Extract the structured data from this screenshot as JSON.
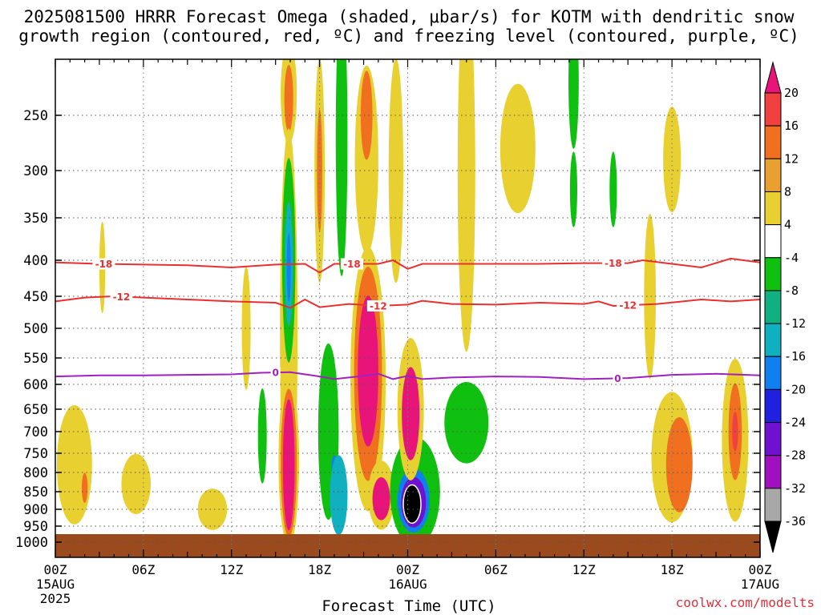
{
  "chart_data": {
    "type": "heatmap",
    "title_line1": "2025081500 HRRR Forecast Omega (shaded, μbar/s) for KOTM with dendritic snow",
    "title_line2": "growth region (contoured, red, ºC) and freezing level (contoured, purple, ºC)",
    "xlabel": "Forecast Time (UTC)",
    "credit": "coolwx.com/modelts",
    "x_ticks": [
      {
        "h": 0,
        "label": "00Z",
        "sub1": "15AUG",
        "sub2": "2025"
      },
      {
        "h": 6,
        "label": "06Z",
        "sub1": "",
        "sub2": ""
      },
      {
        "h": 12,
        "label": "12Z",
        "sub1": "",
        "sub2": ""
      },
      {
        "h": 18,
        "label": "18Z",
        "sub1": "",
        "sub2": ""
      },
      {
        "h": 24,
        "label": "00Z",
        "sub1": "16AUG",
        "sub2": ""
      },
      {
        "h": 30,
        "label": "06Z",
        "sub1": "",
        "sub2": ""
      },
      {
        "h": 36,
        "label": "12Z",
        "sub1": "",
        "sub2": ""
      },
      {
        "h": 42,
        "label": "18Z",
        "sub1": "",
        "sub2": ""
      },
      {
        "h": 48,
        "label": "00Z",
        "sub1": "17AUG",
        "sub2": ""
      }
    ],
    "xlim": [
      0,
      48
    ],
    "y_ticks": [
      250,
      300,
      350,
      400,
      450,
      500,
      550,
      600,
      650,
      700,
      750,
      800,
      850,
      900,
      950,
      1000
    ],
    "ylim": [
      200,
      1020
    ],
    "surface_pressure": 975,
    "colorbar": {
      "labels": [
        "20",
        "16",
        "12",
        "8",
        "4",
        "-4",
        "-8",
        "-12",
        "-16",
        "-20",
        "-24",
        "-28",
        "-32",
        "-36"
      ],
      "colors": [
        "#e8147a",
        "#f04040",
        "#f07020",
        "#e8a030",
        "#e8d030",
        "#ffffff",
        "#10c010",
        "#10b080",
        "#10b0c0",
        "#1080f0",
        "#2020e0",
        "#7010d0",
        "#a010c0",
        "#a8a8a8",
        "#000000"
      ]
    },
    "omega_features": [
      {
        "h": 15.9,
        "p": 230,
        "rh": 0.55,
        "rp": 45,
        "level": "yellow"
      },
      {
        "h": 15.9,
        "p": 235,
        "rh": 0.3,
        "rp": 30,
        "level": "orange"
      },
      {
        "h": 15.9,
        "p": 505,
        "rh": 0.6,
        "rp": 320,
        "level": "yellow"
      },
      {
        "h": 15.9,
        "p": 400,
        "rh": 0.45,
        "rp": 130,
        "level": "green"
      },
      {
        "h": 15.9,
        "p": 405,
        "rh": 0.28,
        "rp": 80,
        "level": "teal"
      },
      {
        "h": 15.9,
        "p": 410,
        "rh": 0.14,
        "rp": 45,
        "level": "blue"
      },
      {
        "h": 15.9,
        "p": 770,
        "rh": 0.7,
        "rp": 210,
        "level": "yellow"
      },
      {
        "h": 15.9,
        "p": 775,
        "rh": 0.55,
        "rp": 185,
        "level": "orange"
      },
      {
        "h": 15.9,
        "p": 780,
        "rh": 0.4,
        "rp": 165,
        "level": "magenta"
      },
      {
        "h": 14.1,
        "p": 710,
        "rh": 0.3,
        "rp": 110,
        "level": "green"
      },
      {
        "h": 18,
        "p": 300,
        "rh": 0.35,
        "rp": 110,
        "level": "yellow"
      },
      {
        "h": 18,
        "p": 300,
        "rh": 0.18,
        "rp": 60,
        "level": "orange"
      },
      {
        "h": 18.6,
        "p": 700,
        "rh": 0.7,
        "rp": 200,
        "level": "green"
      },
      {
        "h": 19.0,
        "p": 790,
        "rh": 0.2,
        "rp": 35,
        "level": "blue"
      },
      {
        "h": 19.5,
        "p": 270,
        "rh": 0.4,
        "rp": 130,
        "level": "green"
      },
      {
        "h": 19.3,
        "p": 860,
        "rh": 0.6,
        "rp": 110,
        "level": "teal"
      },
      {
        "h": 21.3,
        "p": 590,
        "rh": 1.2,
        "rp": 250,
        "level": "yellow"
      },
      {
        "h": 21.3,
        "p": 580,
        "rh": 0.95,
        "rp": 200,
        "level": "orange"
      },
      {
        "h": 21.3,
        "p": 575,
        "rh": 0.7,
        "rp": 140,
        "level": "magenta"
      },
      {
        "h": 21.2,
        "p": 290,
        "rh": 0.8,
        "rp": 90,
        "level": "yellow"
      },
      {
        "h": 21.2,
        "p": 250,
        "rh": 0.4,
        "rp": 40,
        "level": "orange"
      },
      {
        "h": 22.2,
        "p": 860,
        "rh": 0.9,
        "rp": 95,
        "level": "yellow"
      },
      {
        "h": 22.2,
        "p": 870,
        "rh": 0.6,
        "rp": 60,
        "level": "magenta"
      },
      {
        "h": 24.5,
        "p": 850,
        "rh": 1.7,
        "rp": 150,
        "level": "green"
      },
      {
        "h": 24.4,
        "p": 875,
        "rh": 1.1,
        "rp": 90,
        "level": "blue"
      },
      {
        "h": 24.4,
        "p": 880,
        "rh": 0.85,
        "rp": 72,
        "level": "purple"
      },
      {
        "h": 24.3,
        "p": 885,
        "rh": 0.6,
        "rp": 55,
        "level": "black"
      },
      {
        "h": 24.2,
        "p": 650,
        "rh": 0.9,
        "rp": 150,
        "level": "yellow"
      },
      {
        "h": 24.2,
        "p": 660,
        "rh": 0.6,
        "rp": 100,
        "level": "magenta"
      },
      {
        "h": 23.2,
        "p": 300,
        "rh": 0.5,
        "rp": 110,
        "level": "yellow"
      },
      {
        "h": 28.0,
        "p": 680,
        "rh": 1.5,
        "rp": 90,
        "level": "green"
      },
      {
        "h": 28.0,
        "p": 300,
        "rh": 0.6,
        "rp": 180,
        "level": "yellow"
      },
      {
        "h": 31.5,
        "p": 280,
        "rh": 1.2,
        "rp": 60,
        "level": "yellow"
      },
      {
        "h": 35.3,
        "p": 220,
        "rh": 0.35,
        "rp": 60,
        "level": "green"
      },
      {
        "h": 35.3,
        "p": 320,
        "rh": 0.25,
        "rp": 40,
        "level": "green"
      },
      {
        "h": 38.0,
        "p": 320,
        "rh": 0.25,
        "rp": 40,
        "level": "green"
      },
      {
        "h": 42.0,
        "p": 760,
        "rh": 1.4,
        "rp": 160,
        "level": "yellow"
      },
      {
        "h": 42.5,
        "p": 780,
        "rh": 0.9,
        "rp": 120,
        "level": "orange"
      },
      {
        "h": 46.3,
        "p": 720,
        "rh": 0.9,
        "rp": 190,
        "level": "yellow"
      },
      {
        "h": 46.3,
        "p": 700,
        "rh": 0.45,
        "rp": 110,
        "level": "orange"
      },
      {
        "h": 46.3,
        "p": 700,
        "rh": 0.2,
        "rp": 45,
        "level": "red"
      },
      {
        "h": 40.5,
        "p": 450,
        "rh": 0.4,
        "rp": 120,
        "level": "yellow"
      },
      {
        "h": 42.0,
        "p": 290,
        "rh": 0.6,
        "rp": 50,
        "level": "yellow"
      },
      {
        "h": 1.3,
        "p": 780,
        "rh": 1.2,
        "rp": 150,
        "level": "yellow"
      },
      {
        "h": 2.0,
        "p": 840,
        "rh": 0.2,
        "rp": 40,
        "level": "orange"
      },
      {
        "h": 5.5,
        "p": 830,
        "rh": 1.0,
        "rp": 80,
        "level": "yellow"
      },
      {
        "h": 10.7,
        "p": 900,
        "rh": 1.0,
        "rp": 60,
        "level": "yellow"
      },
      {
        "h": 3.2,
        "p": 410,
        "rh": 0.2,
        "rp": 60,
        "level": "yellow"
      },
      {
        "h": 13.0,
        "p": 500,
        "rh": 0.3,
        "rp": 100,
        "level": "yellow"
      }
    ],
    "contours": [
      {
        "kind": "dgz",
        "color": "#e83030",
        "value_label": "-18",
        "label_at_h": [
          3.3,
          20.2,
          38.0
        ],
        "points": [
          [
            0,
            403
          ],
          [
            3,
            405
          ],
          [
            6,
            406
          ],
          [
            9,
            407
          ],
          [
            12,
            410
          ],
          [
            15,
            406
          ],
          [
            17,
            405
          ],
          [
            18,
            417
          ],
          [
            19,
            405
          ],
          [
            22,
            405
          ],
          [
            23,
            400
          ],
          [
            24,
            412
          ],
          [
            25,
            405
          ],
          [
            27,
            405
          ],
          [
            30,
            405
          ],
          [
            33,
            405
          ],
          [
            36,
            404
          ],
          [
            39,
            404
          ],
          [
            40,
            400
          ],
          [
            42,
            405
          ],
          [
            44,
            410
          ],
          [
            46,
            398
          ],
          [
            48,
            403
          ]
        ]
      },
      {
        "kind": "dgz",
        "color": "#e83030",
        "value_label": "-12",
        "label_at_h": [
          4.5,
          22.0,
          39.0
        ],
        "points": [
          [
            0,
            458
          ],
          [
            2,
            452
          ],
          [
            4,
            450
          ],
          [
            6,
            452
          ],
          [
            9,
            455
          ],
          [
            12,
            458
          ],
          [
            15,
            460
          ],
          [
            16,
            468
          ],
          [
            17,
            455
          ],
          [
            18,
            467
          ],
          [
            20,
            462
          ],
          [
            22,
            465
          ],
          [
            24,
            463
          ],
          [
            25,
            457
          ],
          [
            27,
            462
          ],
          [
            30,
            463
          ],
          [
            33,
            460
          ],
          [
            36,
            462
          ],
          [
            37,
            458
          ],
          [
            38,
            465
          ],
          [
            41,
            462
          ],
          [
            44,
            455
          ],
          [
            46,
            458
          ],
          [
            48,
            455
          ]
        ]
      },
      {
        "kind": "freezing",
        "color": "#a020c0",
        "value_label": "0",
        "label_at_h": [
          15.0,
          38.3
        ],
        "points": [
          [
            0,
            585
          ],
          [
            3,
            583
          ],
          [
            6,
            583
          ],
          [
            9,
            582
          ],
          [
            12,
            581
          ],
          [
            14,
            578
          ],
          [
            16,
            577
          ],
          [
            18,
            585
          ],
          [
            19,
            590
          ],
          [
            20,
            587
          ],
          [
            21,
            584
          ],
          [
            22,
            580
          ],
          [
            23,
            590
          ],
          [
            24,
            584
          ],
          [
            25,
            590
          ],
          [
            27,
            587
          ],
          [
            30,
            585
          ],
          [
            33,
            586
          ],
          [
            36,
            590
          ],
          [
            39,
            588
          ],
          [
            42,
            582
          ],
          [
            45,
            580
          ],
          [
            48,
            583
          ]
        ]
      }
    ]
  }
}
